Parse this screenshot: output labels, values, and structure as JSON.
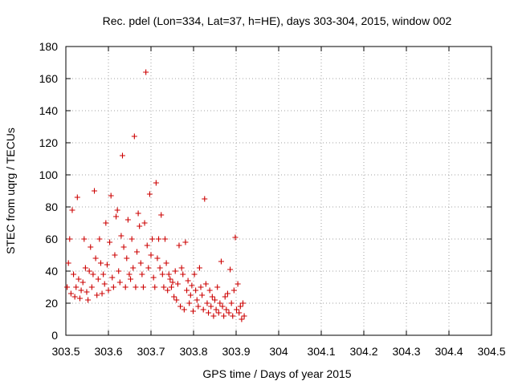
{
  "colors": {
    "series": "#cc0000",
    "grid": "#a0a0a0",
    "axis": "#000000"
  },
  "chart_data": {
    "type": "scatter",
    "title": "Rec. pdel (Lon=334, Lat=37, h=HE), days 303-304, 2015, window 002",
    "xlabel": "GPS time / Days of year 2015",
    "ylabel": "STEC from uqrg / TECUs",
    "xlim": [
      303.5,
      304.5
    ],
    "ylim": [
      0,
      180
    ],
    "xticks": [
      303.5,
      303.6,
      303.7,
      303.8,
      303.9,
      304.0,
      304.1,
      304.2,
      304.3,
      304.4,
      304.5
    ],
    "xtick_labels": [
      "303.5",
      "303.6",
      "303.7",
      "303.8",
      "303.9",
      "304",
      "304.1",
      "304.2",
      "304.3",
      "304.4",
      "304.5"
    ],
    "yticks": [
      0,
      20,
      40,
      60,
      80,
      100,
      120,
      140,
      160,
      180
    ],
    "ytick_labels": [
      "0",
      "20",
      "40",
      "60",
      "80",
      "100",
      "120",
      "140",
      "160",
      "180"
    ],
    "grid": true,
    "marker": "plus",
    "series": [
      {
        "name": "STEC",
        "points": [
          [
            303.503,
            30
          ],
          [
            303.506,
            45
          ],
          [
            303.509,
            60
          ],
          [
            303.512,
            26
          ],
          [
            303.515,
            78
          ],
          [
            303.518,
            38
          ],
          [
            303.521,
            24
          ],
          [
            303.524,
            30
          ],
          [
            303.527,
            86
          ],
          [
            303.53,
            35
          ],
          [
            303.533,
            23
          ],
          [
            303.536,
            28
          ],
          [
            303.54,
            33
          ],
          [
            303.543,
            60
          ],
          [
            303.546,
            42
          ],
          [
            303.549,
            27
          ],
          [
            303.552,
            22
          ],
          [
            303.555,
            40
          ],
          [
            303.558,
            55
          ],
          [
            303.561,
            30
          ],
          [
            303.564,
            38
          ],
          [
            303.567,
            90
          ],
          [
            303.57,
            48
          ],
          [
            303.573,
            25
          ],
          [
            303.576,
            35
          ],
          [
            303.579,
            60
          ],
          [
            303.582,
            45
          ],
          [
            303.585,
            26
          ],
          [
            303.588,
            38
          ],
          [
            303.591,
            32
          ],
          [
            303.594,
            70
          ],
          [
            303.597,
            44
          ],
          [
            303.6,
            28
          ],
          [
            303.603,
            58
          ],
          [
            303.606,
            87
          ],
          [
            303.609,
            36
          ],
          [
            303.612,
            30
          ],
          [
            303.615,
            50
          ],
          [
            303.618,
            74
          ],
          [
            303.621,
            78
          ],
          [
            303.624,
            40
          ],
          [
            303.627,
            33
          ],
          [
            303.63,
            62
          ],
          [
            303.633,
            112
          ],
          [
            303.636,
            55
          ],
          [
            303.64,
            30
          ],
          [
            303.643,
            48
          ],
          [
            303.646,
            72
          ],
          [
            303.649,
            38
          ],
          [
            303.652,
            35
          ],
          [
            303.655,
            60
          ],
          [
            303.658,
            42
          ],
          [
            303.661,
            124
          ],
          [
            303.664,
            30
          ],
          [
            303.667,
            52
          ],
          [
            303.67,
            76
          ],
          [
            303.673,
            68
          ],
          [
            303.676,
            45
          ],
          [
            303.679,
            38
          ],
          [
            303.682,
            30
          ],
          [
            303.685,
            70
          ],
          [
            303.688,
            164
          ],
          [
            303.691,
            56
          ],
          [
            303.694,
            42
          ],
          [
            303.697,
            88
          ],
          [
            303.7,
            50
          ],
          [
            303.703,
            60
          ],
          [
            303.706,
            36
          ],
          [
            303.709,
            30
          ],
          [
            303.712,
            95
          ],
          [
            303.715,
            48
          ],
          [
            303.718,
            60
          ],
          [
            303.721,
            42
          ],
          [
            303.724,
            75
          ],
          [
            303.727,
            38
          ],
          [
            303.73,
            30
          ],
          [
            303.733,
            60
          ],
          [
            303.736,
            45
          ],
          [
            303.739,
            28
          ],
          [
            303.742,
            38
          ],
          [
            303.745,
            35
          ],
          [
            303.748,
            30
          ],
          [
            303.751,
            33
          ],
          [
            303.754,
            24
          ],
          [
            303.757,
            40
          ],
          [
            303.76,
            22
          ],
          [
            303.763,
            32
          ],
          [
            303.766,
            56
          ],
          [
            303.769,
            18
          ],
          [
            303.772,
            42
          ],
          [
            303.775,
            38
          ],
          [
            303.778,
            16
          ],
          [
            303.781,
            58
          ],
          [
            303.784,
            28
          ],
          [
            303.787,
            34
          ],
          [
            303.79,
            20
          ],
          [
            303.793,
            25
          ],
          [
            303.796,
            31
          ],
          [
            303.799,
            15
          ],
          [
            303.802,
            38
          ],
          [
            303.805,
            28
          ],
          [
            303.808,
            22
          ],
          [
            303.811,
            18
          ],
          [
            303.814,
            42
          ],
          [
            303.817,
            30
          ],
          [
            303.82,
            25
          ],
          [
            303.823,
            16
          ],
          [
            303.826,
            85
          ],
          [
            303.829,
            32
          ],
          [
            303.832,
            20
          ],
          [
            303.835,
            14
          ],
          [
            303.838,
            28
          ],
          [
            303.841,
            18
          ],
          [
            303.844,
            24
          ],
          [
            303.847,
            12
          ],
          [
            303.85,
            22
          ],
          [
            303.853,
            16
          ],
          [
            303.856,
            30
          ],
          [
            303.859,
            14
          ],
          [
            303.862,
            20
          ],
          [
            303.865,
            46
          ],
          [
            303.868,
            18
          ],
          [
            303.871,
            12
          ],
          [
            303.874,
            24
          ],
          [
            303.877,
            16
          ],
          [
            303.88,
            26
          ],
          [
            303.883,
            14
          ],
          [
            303.886,
            41
          ],
          [
            303.889,
            20
          ],
          [
            303.892,
            12
          ],
          [
            303.895,
            28
          ],
          [
            303.898,
            61
          ],
          [
            303.901,
            16
          ],
          [
            303.904,
            32
          ],
          [
            303.907,
            14
          ],
          [
            303.91,
            18
          ],
          [
            303.913,
            10
          ],
          [
            303.916,
            20
          ],
          [
            303.919,
            12
          ]
        ]
      }
    ]
  }
}
